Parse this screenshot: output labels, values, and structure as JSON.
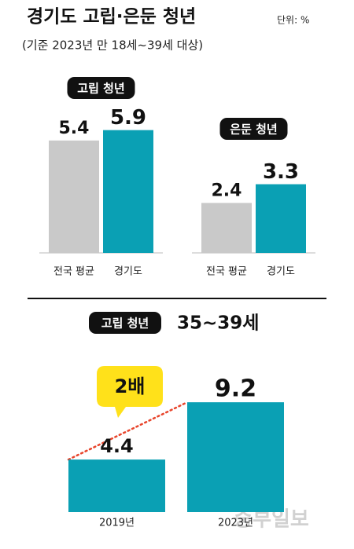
{
  "title": "경기도 고립·은둔 청년",
  "unit": "단위: %",
  "subtitle": "(기준 2023년 만 18세~39세 대상)",
  "source": "중부일보",
  "chart_data": [
    {
      "type": "bar",
      "categories": [
        "고립 청년",
        "은둔 청년"
      ],
      "series": [
        {
          "name": "전국 평균",
          "color": "#c9c9c9",
          "values": [
            5.4,
            2.4
          ]
        },
        {
          "name": "경기도",
          "color": "#0aa0b4",
          "values": [
            5.9,
            3.3
          ]
        }
      ]
    },
    {
      "type": "bar",
      "title": "고립 청년",
      "subtitle": "35~39세",
      "annotation": "2배",
      "categories": [
        "2019년",
        "2023년"
      ],
      "values": [
        4.4,
        9.2
      ],
      "color": "#0aa0b4",
      "trend_color": "#e8452c",
      "callout_color": "#ffe11a"
    }
  ]
}
